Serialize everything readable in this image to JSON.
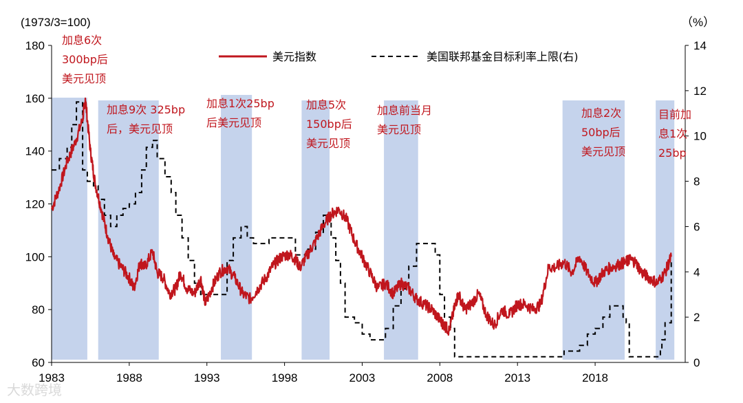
{
  "chart_data": {
    "type": "line",
    "left_unit": "(1973/3=100)",
    "right_unit": "（%）",
    "left_ylim": [
      60,
      180
    ],
    "right_ylim": [
      0,
      14
    ],
    "left_ticks": [
      "60",
      "80",
      "100",
      "120",
      "140",
      "160",
      "180"
    ],
    "right_ticks": [
      "0",
      "2",
      "4",
      "6",
      "8",
      "10",
      "12",
      "14"
    ],
    "xlim": [
      1983.0,
      2023.8
    ],
    "x_ticks": [
      "1983",
      "1988",
      "1993",
      "1998",
      "2003",
      "2008",
      "2013",
      "2018"
    ],
    "legend_placement": "top",
    "series": [
      {
        "name": "美元指数",
        "axis": "left",
        "color": "#c0161d",
        "style": "solid",
        "x": [
          1983.0,
          1983.5,
          1984.0,
          1984.5,
          1985.0,
          1985.17,
          1985.5,
          1985.8,
          1986.2,
          1986.6,
          1987.0,
          1987.5,
          1988.0,
          1988.3,
          1988.7,
          1989.0,
          1989.5,
          1989.8,
          1990.2,
          1990.6,
          1991.0,
          1991.3,
          1991.7,
          1992.2,
          1992.6,
          1992.9,
          1993.3,
          1993.8,
          1994.3,
          1994.8,
          1995.3,
          1995.8,
          1996.3,
          1996.8,
          1997.3,
          1997.8,
          1998.3,
          1998.7,
          1999.0,
          1999.5,
          2000.0,
          2000.5,
          2001.0,
          2001.5,
          2002.0,
          2002.5,
          2003.0,
          2003.5,
          2004.0,
          2004.5,
          2005.0,
          2005.5,
          2006.0,
          2006.5,
          2007.0,
          2007.5,
          2008.0,
          2008.3,
          2008.6,
          2009.0,
          2009.2,
          2009.6,
          2010.0,
          2010.5,
          2011.0,
          2011.5,
          2012.0,
          2012.5,
          2013.0,
          2013.5,
          2014.0,
          2014.5,
          2015.0,
          2015.5,
          2016.0,
          2016.5,
          2017.0,
          2017.5,
          2018.0,
          2018.5,
          2019.0,
          2019.5,
          2020.0,
          2020.2,
          2020.6,
          2021.0,
          2021.5,
          2022.0,
          2022.5,
          2022.9
        ],
        "y": [
          118,
          126,
          136,
          143,
          152,
          160,
          140,
          128,
          118,
          108,
          100,
          96,
          92,
          88,
          98,
          96,
          102,
          94,
          92,
          86,
          88,
          94,
          88,
          86,
          92,
          82,
          88,
          94,
          96,
          92,
          86,
          84,
          88,
          92,
          97,
          100,
          101,
          99,
          96,
          101,
          106,
          112,
          116,
          118,
          114,
          106,
          100,
          94,
          88,
          90,
          86,
          90,
          88,
          84,
          82,
          80,
          76,
          74,
          72,
          82,
          86,
          80,
          82,
          86,
          78,
          74,
          80,
          78,
          82,
          82,
          80,
          82,
          96,
          96,
          98,
          94,
          100,
          94,
          90,
          94,
          96,
          97,
          98,
          99,
          98,
          94,
          92,
          90,
          94,
          100
        ]
      },
      {
        "name": "美国联邦基金目标利率上限(右)",
        "axis": "right",
        "color": "#000000",
        "style": "dashed",
        "x": [
          1983.0,
          1983.5,
          1984.0,
          1984.3,
          1984.6,
          1985.0,
          1985.3,
          1985.7,
          1986.0,
          1986.4,
          1986.8,
          1987.2,
          1987.6,
          1988.0,
          1988.4,
          1988.8,
          1989.1,
          1989.5,
          1989.8,
          1990.3,
          1990.7,
          1991.0,
          1991.4,
          1991.8,
          1992.2,
          1992.6,
          1993.0,
          1993.5,
          1994.0,
          1994.3,
          1994.7,
          1995.2,
          1995.6,
          1996.0,
          1997.0,
          1998.0,
          1998.7,
          1999.0,
          1999.5,
          2000.0,
          2000.5,
          2001.0,
          2001.3,
          2001.6,
          2001.9,
          2002.5,
          2003.0,
          2003.5,
          2004.0,
          2004.5,
          2005.0,
          2005.5,
          2006.0,
          2006.5,
          2007.0,
          2007.5,
          2007.7,
          2008.0,
          2008.3,
          2008.7,
          2008.95,
          2009.5,
          2012.0,
          2015.0,
          2015.9,
          2016.0,
          2016.9,
          2017.0,
          2017.5,
          2018.0,
          2018.5,
          2018.95,
          2019.5,
          2019.8,
          2020.0,
          2020.2,
          2021.0,
          2022.0,
          2022.2,
          2022.3,
          2022.5,
          2022.9
        ],
        "y": [
          8.5,
          9.0,
          9.5,
          10.5,
          11.5,
          8.5,
          8.0,
          7.8,
          7.2,
          6.5,
          6.0,
          6.5,
          6.8,
          7.0,
          7.5,
          8.5,
          9.5,
          9.8,
          9.0,
          8.2,
          7.5,
          6.5,
          5.5,
          4.5,
          3.5,
          3.0,
          3.0,
          3.0,
          3.0,
          4.5,
          5.5,
          6.0,
          5.5,
          5.25,
          5.5,
          5.5,
          4.75,
          4.75,
          5.0,
          5.75,
          6.5,
          5.5,
          4.5,
          3.5,
          2.0,
          1.75,
          1.25,
          1.0,
          1.0,
          1.5,
          2.5,
          3.25,
          4.25,
          5.25,
          5.25,
          5.25,
          4.75,
          3.0,
          2.0,
          1.5,
          0.25,
          0.25,
          0.25,
          0.25,
          0.25,
          0.5,
          0.5,
          0.75,
          1.25,
          1.5,
          2.0,
          2.5,
          2.5,
          2.0,
          1.75,
          0.25,
          0.25,
          0.25,
          0.5,
          1.0,
          1.75,
          4.5
        ]
      }
    ],
    "shaded_periods": [
      [
        1983.0,
        1985.3
      ],
      [
        1986.0,
        1989.9
      ],
      [
        1993.9,
        1995.9
      ],
      [
        1999.1,
        2000.9
      ],
      [
        2004.4,
        2006.6
      ],
      [
        2015.9,
        2019.9
      ],
      [
        2021.9,
        2023.1
      ]
    ],
    "annotations": [
      {
        "lines": [
          "加息6次",
          "300bp后",
          "美元见顶"
        ]
      },
      {
        "lines": [
          "加息9次 325bp",
          "后，美元见顶"
        ]
      },
      {
        "lines": [
          "加息1次25bp",
          "后美元见顶"
        ]
      },
      {
        "lines": [
          "加息5次",
          "150bp后",
          "美元见顶"
        ]
      },
      {
        "lines": [
          "加息前当月",
          "美元见顶"
        ]
      },
      {
        "lines": [
          "加息2次",
          "50bp后",
          "美元见顶"
        ]
      },
      {
        "lines": [
          "目前加",
          "息1次",
          "25bp"
        ]
      }
    ]
  },
  "watermark": "大数跨境",
  "colors": {
    "shade": "#c5d3ec",
    "usd": "#c0161d",
    "rate": "#000000"
  }
}
